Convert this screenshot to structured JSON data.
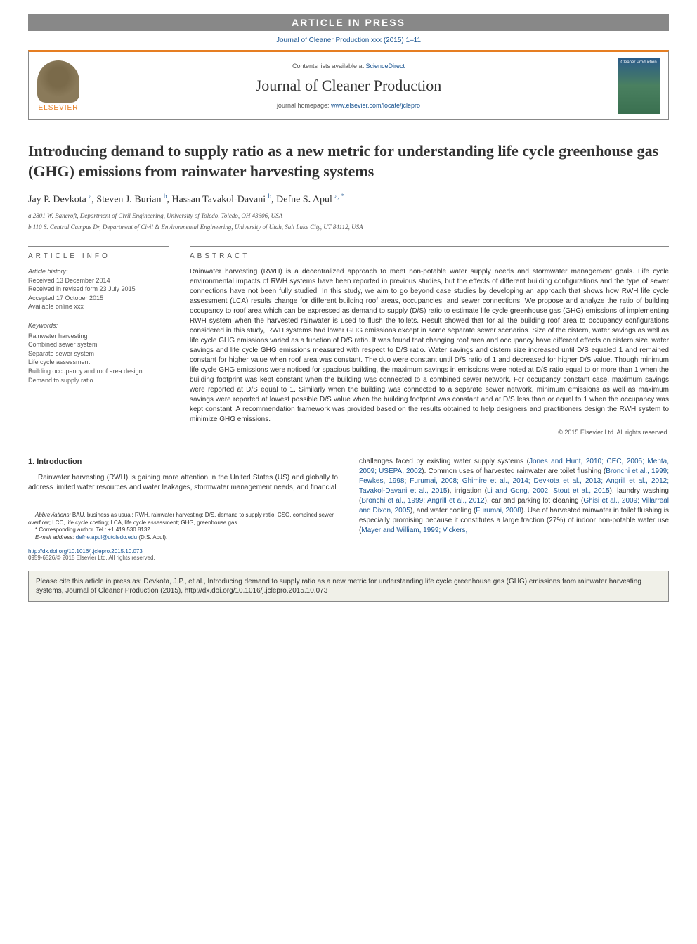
{
  "banner": {
    "text": "ARTICLE IN PRESS"
  },
  "journal_ref": "Journal of Cleaner Production xxx (2015) 1–11",
  "header": {
    "contents_prefix": "Contents lists available at ",
    "contents_link": "ScienceDirect",
    "journal_name": "Journal of Cleaner Production",
    "homepage_prefix": "journal homepage: ",
    "homepage_url": "www.elsevier.com/locate/jclepro",
    "elsevier": "ELSEVIER"
  },
  "title": "Introducing demand to supply ratio as a new metric for understanding life cycle greenhouse gas (GHG) emissions from rainwater harvesting systems",
  "authors": {
    "a1": {
      "name": "Jay P. Devkota",
      "aff": "a"
    },
    "a2": {
      "name": "Steven J. Burian",
      "aff": "b"
    },
    "a3": {
      "name": "Hassan Tavakol-Davani",
      "aff": "b"
    },
    "a4": {
      "name": "Defne S. Apul",
      "aff": "a, *"
    }
  },
  "affiliations": {
    "a": "a 2801 W. Bancroft, Department of Civil Engineering, University of Toledo, Toledo, OH 43606, USA",
    "b": "b 110 S. Central Campus Dr, Department of Civil & Environmental Engineering, University of Utah, Salt Lake City, UT 84112, USA"
  },
  "article_info": {
    "header": "ARTICLE INFO",
    "history_label": "Article history:",
    "received": "Received 13 December 2014",
    "revised": "Received in revised form 23 July 2015",
    "accepted": "Accepted 17 October 2015",
    "online": "Available online xxx",
    "keywords_label": "Keywords:",
    "kw1": "Rainwater harvesting",
    "kw2": "Combined sewer system",
    "kw3": "Separate sewer system",
    "kw4": "Life cycle assessment",
    "kw5": "Building occupancy and roof area design",
    "kw6": "Demand to supply ratio"
  },
  "abstract": {
    "header": "ABSTRACT",
    "text": "Rainwater harvesting (RWH) is a decentralized approach to meet non-potable water supply needs and stormwater management goals. Life cycle environmental impacts of RWH systems have been reported in previous studies, but the effects of different building configurations and the type of sewer connections have not been fully studied. In this study, we aim to go beyond case studies by developing an approach that shows how RWH life cycle assessment (LCA) results change for different building roof areas, occupancies, and sewer connections. We propose and analyze the ratio of building occupancy to roof area which can be expressed as demand to supply (D/S) ratio to estimate life cycle greenhouse gas (GHG) emissions of implementing RWH system when the harvested rainwater is used to flush the toilets. Result showed that for all the building roof area to occupancy configurations considered in this study, RWH systems had lower GHG emissions except in some separate sewer scenarios. Size of the cistern, water savings as well as life cycle GHG emissions varied as a function of D/S ratio. It was found that changing roof area and occupancy have different effects on cistern size, water savings and life cycle GHG emissions measured with respect to D/S ratio. Water savings and cistern size increased until D/S equaled 1 and remained constant for higher value when roof area was constant. The duo were constant until D/S ratio of 1 and decreased for higher D/S value. Though minimum life cycle GHG emissions were noticed for spacious building, the maximum savings in emissions were noted at D/S ratio equal to or more than 1 when the building footprint was kept constant when the building was connected to a combined sewer network. For occupancy constant case, maximum savings were reported at D/S equal to 1. Similarly when the building was connected to a separate sewer network, minimum emissions as well as maximum savings were reported at lowest possible D/S value when the building footprint was constant and at D/S less than or equal to 1 when the occupancy was kept constant. A recommendation framework was provided based on the results obtained to help designers and practitioners design the RWH system to minimize GHG emissions.",
    "copyright": "© 2015 Elsevier Ltd. All rights reserved."
  },
  "body": {
    "intro_header": "1. Introduction",
    "col1_p1": "Rainwater harvesting (RWH) is gaining more attention in the United States (US) and globally to address limited water resources and water leakages, stormwater management needs, and financial",
    "col2_p1_a": "challenges faced by existing water supply systems (",
    "col2_p1_ref1": "Jones and Hunt, 2010; CEC, 2005; Mehta, 2009; USEPA, 2002",
    "col2_p1_b": "). Common uses of harvested rainwater are toilet flushing (",
    "col2_p1_ref2": "Bronchi et al., 1999; Fewkes, 1998; Furumai, 2008; Ghimire et al., 2014; Devkota et al., 2013; Angrill et al., 2012; Tavakol-Davani et al., 2015",
    "col2_p1_c": "), irrigation (",
    "col2_p1_ref3": "Li and Gong, 2002; Stout et al., 2015",
    "col2_p1_d": "), laundry washing (",
    "col2_p1_ref4": "Bronchi et al., 1999; Angrill et al., 2012",
    "col2_p1_e": "), car and parking lot cleaning (",
    "col2_p1_ref5": "Ghisi et al., 2009; Villarreal and Dixon, 2005",
    "col2_p1_f": "), and water cooling (",
    "col2_p1_ref6": "Furumai, 2008",
    "col2_p1_g": "). Use of harvested rainwater in toilet flushing is especially promising because it constitutes a large fraction (27%) of indoor non-potable water use (",
    "col2_p1_ref7": "Mayer and William, 1999; Vickers,"
  },
  "footnotes": {
    "abbrev_label": "Abbreviations:",
    "abbrev_text": " BAU, business as usual; RWH, rainwater harvesting; D/S, demand to supply ratio; CSO, combined sewer overflow; LCC, life cycle costing; LCA, life cycle assessment; GHG, greenhouse gas.",
    "corr": "* Corresponding author. Tel.: +1 419 530 8132.",
    "email_label": "E-mail address: ",
    "email": "defne.apul@utoledo.edu",
    "email_suffix": " (D.S. Apul)."
  },
  "doi": {
    "url": "http://dx.doi.org/10.1016/j.jclepro.2015.10.073",
    "issn": "0959-6526/© 2015 Elsevier Ltd. All rights reserved."
  },
  "cite_box": "Please cite this article in press as: Devkota, J.P., et al., Introducing demand to supply ratio as a new metric for understanding life cycle greenhouse gas (GHG) emissions from rainwater harvesting systems, Journal of Cleaner Production (2015), http://dx.doi.org/10.1016/j.jclepro.2015.10.073"
}
